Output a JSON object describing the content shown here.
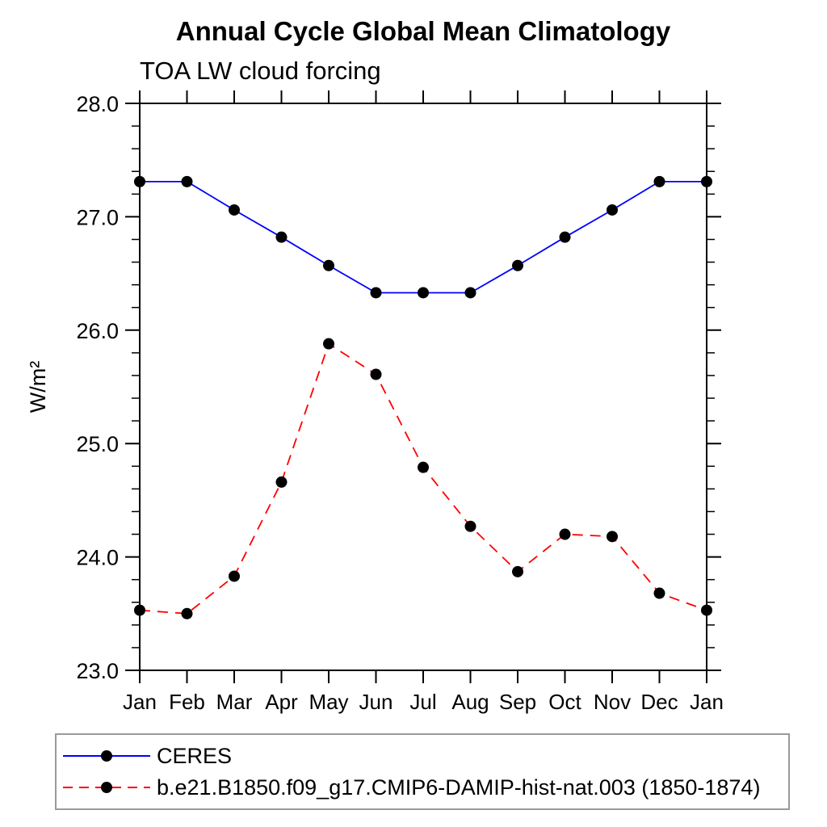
{
  "chart_data": {
    "type": "line",
    "title": "Annual Cycle Global Mean Climatology",
    "subtitle": "TOA LW cloud forcing",
    "ylabel": "W/m²",
    "xlabel": "",
    "categories": [
      "Jan",
      "Feb",
      "Mar",
      "Apr",
      "May",
      "Jun",
      "Jul",
      "Aug",
      "Sep",
      "Oct",
      "Nov",
      "Dec",
      "Jan"
    ],
    "ylim": [
      23.0,
      28.0
    ],
    "yticks_major": [
      23.0,
      24.0,
      25.0,
      26.0,
      27.0,
      28.0
    ],
    "ytick_minor_step": 0.2,
    "grid": false,
    "legend_position": "bottom",
    "frame": "box-with-outward-ticks",
    "series": [
      {
        "name": "CERES",
        "color": "#0000ff",
        "line_style": "solid",
        "marker": "filled-circle",
        "marker_color": "#000000",
        "values": [
          27.31,
          27.31,
          27.06,
          26.82,
          26.57,
          26.33,
          26.33,
          26.33,
          26.57,
          26.82,
          27.06,
          27.31,
          27.31
        ]
      },
      {
        "name": "b.e21.B1850.f09_g17.CMIP6-DAMIP-hist-nat.003 (1850-1874)",
        "color": "#ff0000",
        "line_style": "dashed",
        "marker": "filled-circle",
        "marker_color": "#000000",
        "values": [
          23.53,
          23.5,
          23.83,
          24.66,
          25.88,
          25.61,
          24.79,
          24.27,
          23.87,
          24.2,
          24.18,
          23.68,
          23.53
        ]
      }
    ]
  }
}
